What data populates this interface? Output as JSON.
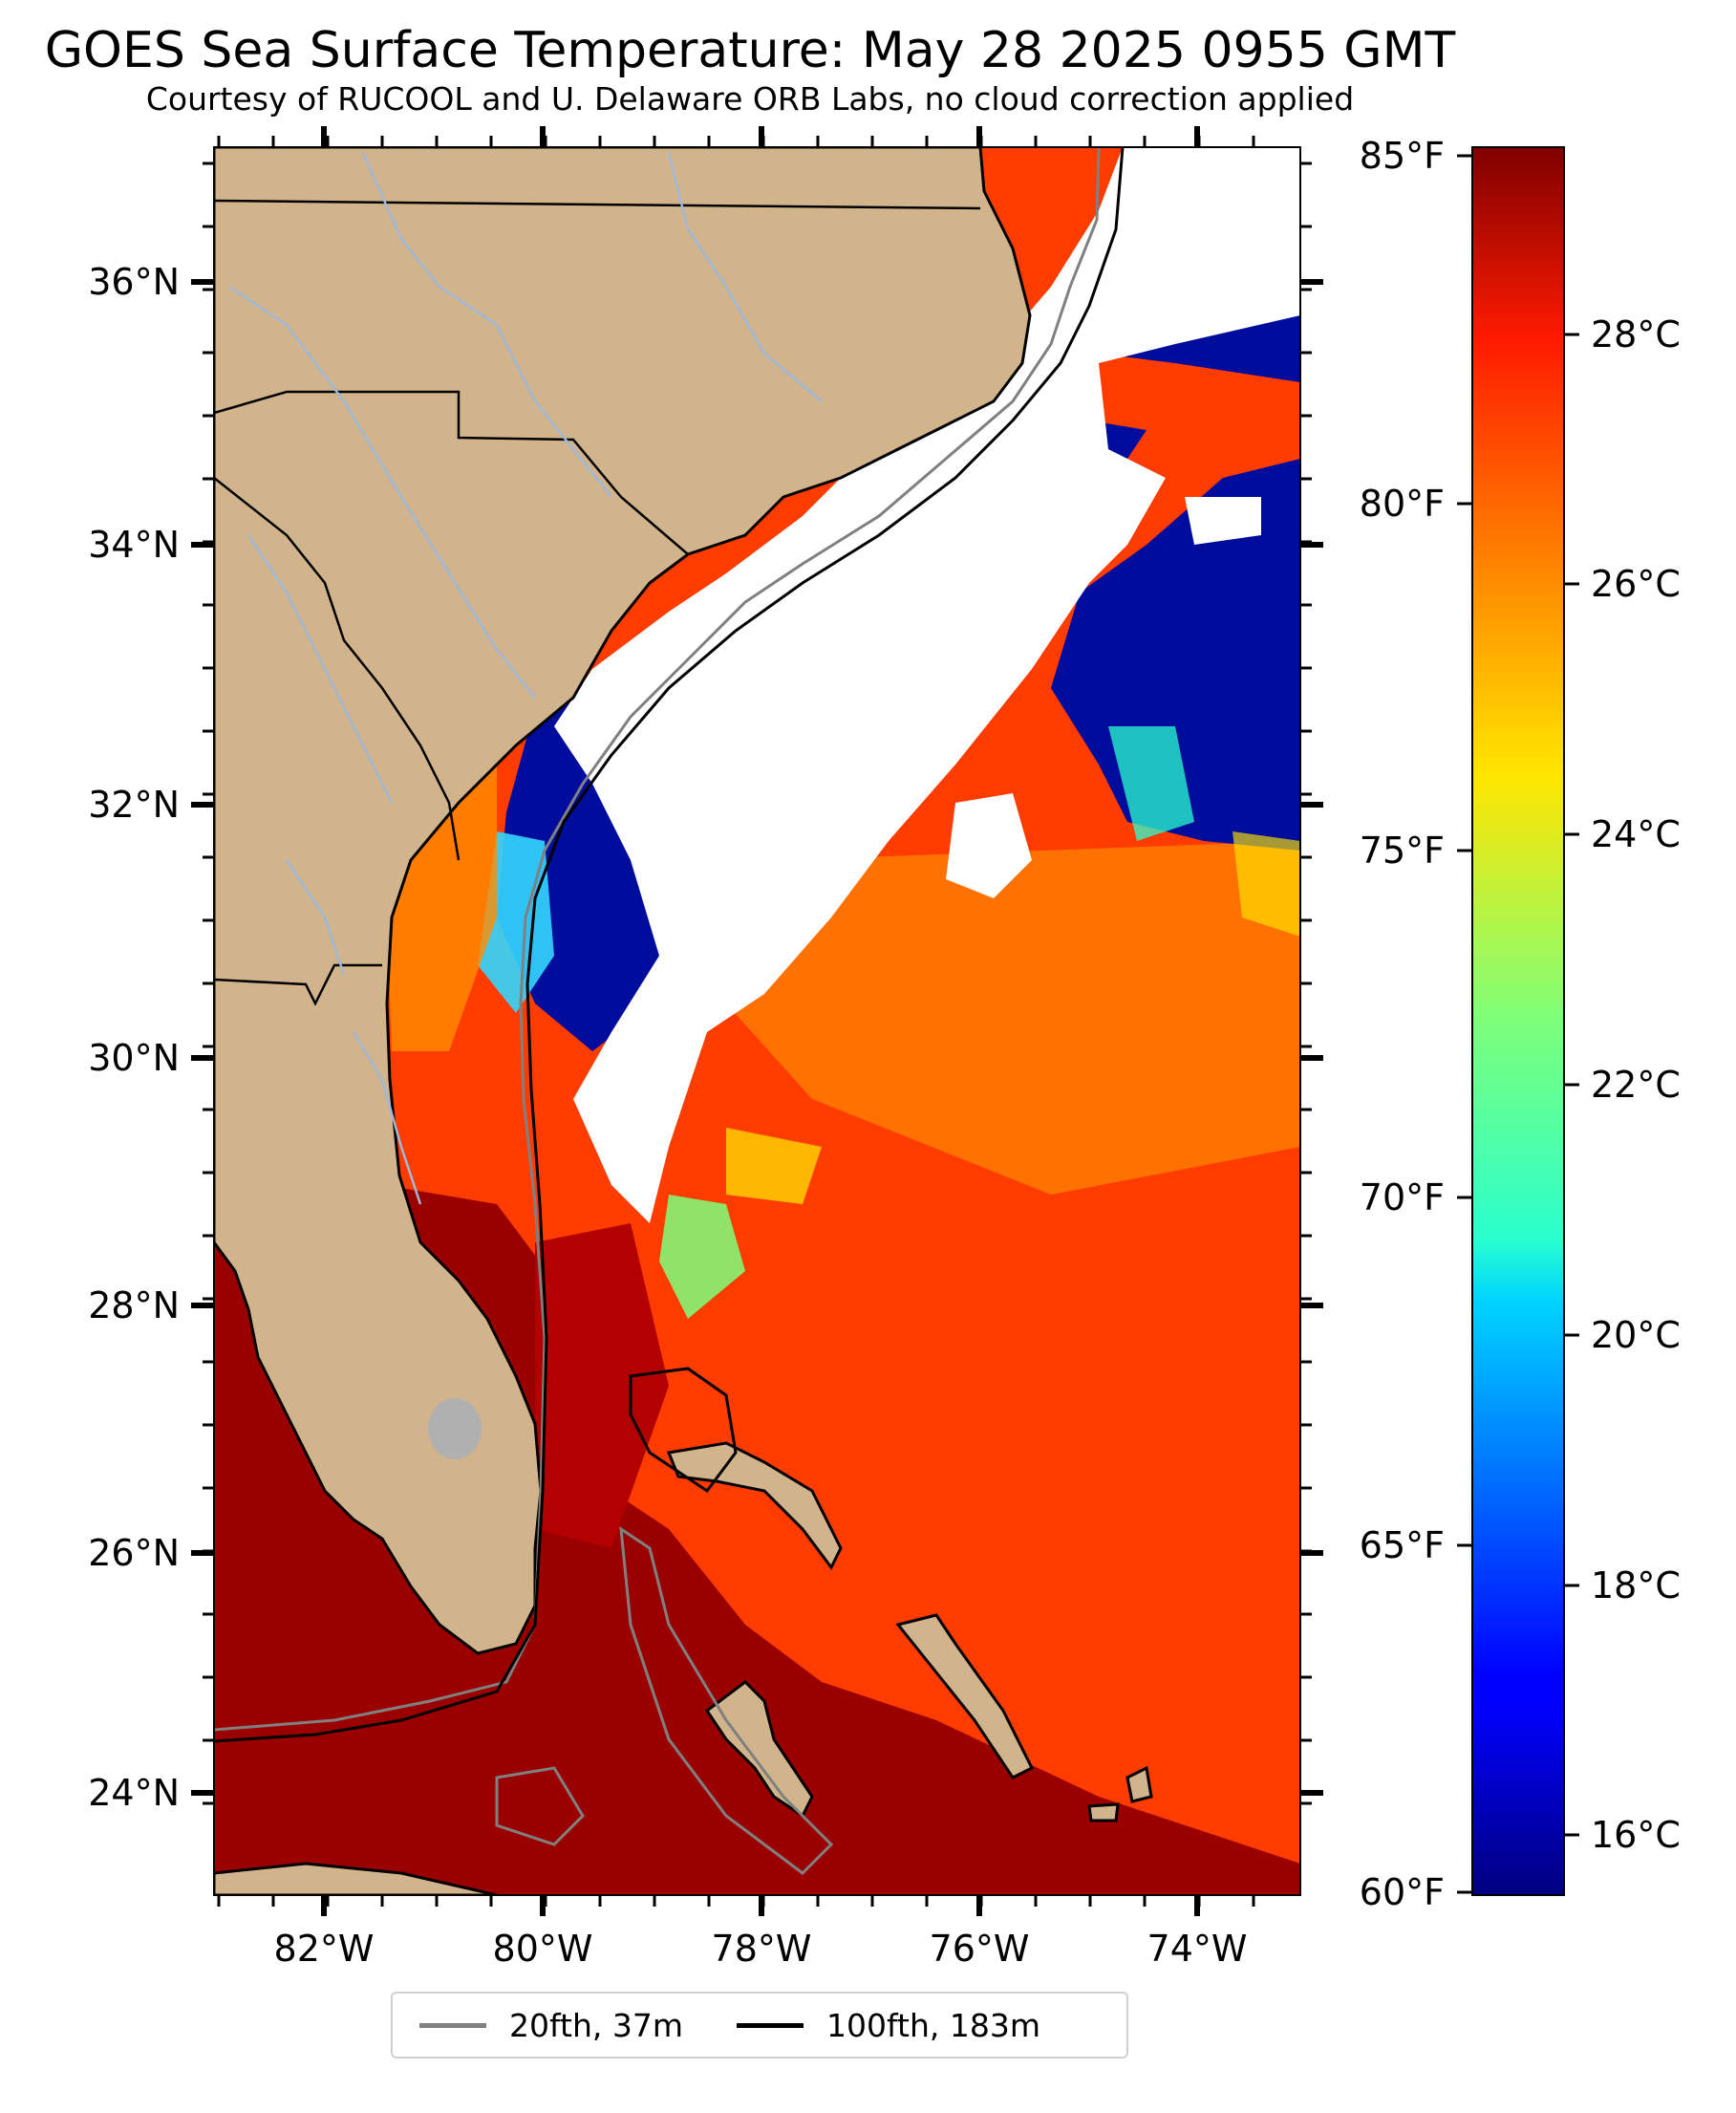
{
  "title": "GOES Sea Surface Temperature: May 28 2025 0955 GMT",
  "subtitle": "Courtesy of RUCOOL and U. Delaware ORB Labs, no cloud correction applied",
  "map": {
    "lat_labels": [
      "36°N",
      "34°N",
      "32°N",
      "30°N",
      "28°N",
      "26°N",
      "24°N"
    ],
    "lon_labels": [
      "82°W",
      "80°W",
      "78°W",
      "76°W",
      "74°W"
    ],
    "colors": {
      "land": "#d2b48c",
      "cloud": "#ffffff",
      "lake": "#b0b0b0",
      "state_line": "#000000",
      "river": "#9fb8d8"
    }
  },
  "colorbar": {
    "fahrenheit_labels": [
      "85°F",
      "80°F",
      "75°F",
      "70°F",
      "65°F",
      "60°F"
    ],
    "celsius_labels": [
      "28°C",
      "26°C",
      "24°C",
      "22°C",
      "20°C",
      "18°C",
      "16°C"
    ],
    "colormap": "jet",
    "range_f": [
      60,
      85
    ]
  },
  "legend": {
    "items": [
      {
        "label": "20fth, 37m",
        "color": "#808080"
      },
      {
        "label": "100fth, 183m",
        "color": "#000000"
      }
    ]
  }
}
